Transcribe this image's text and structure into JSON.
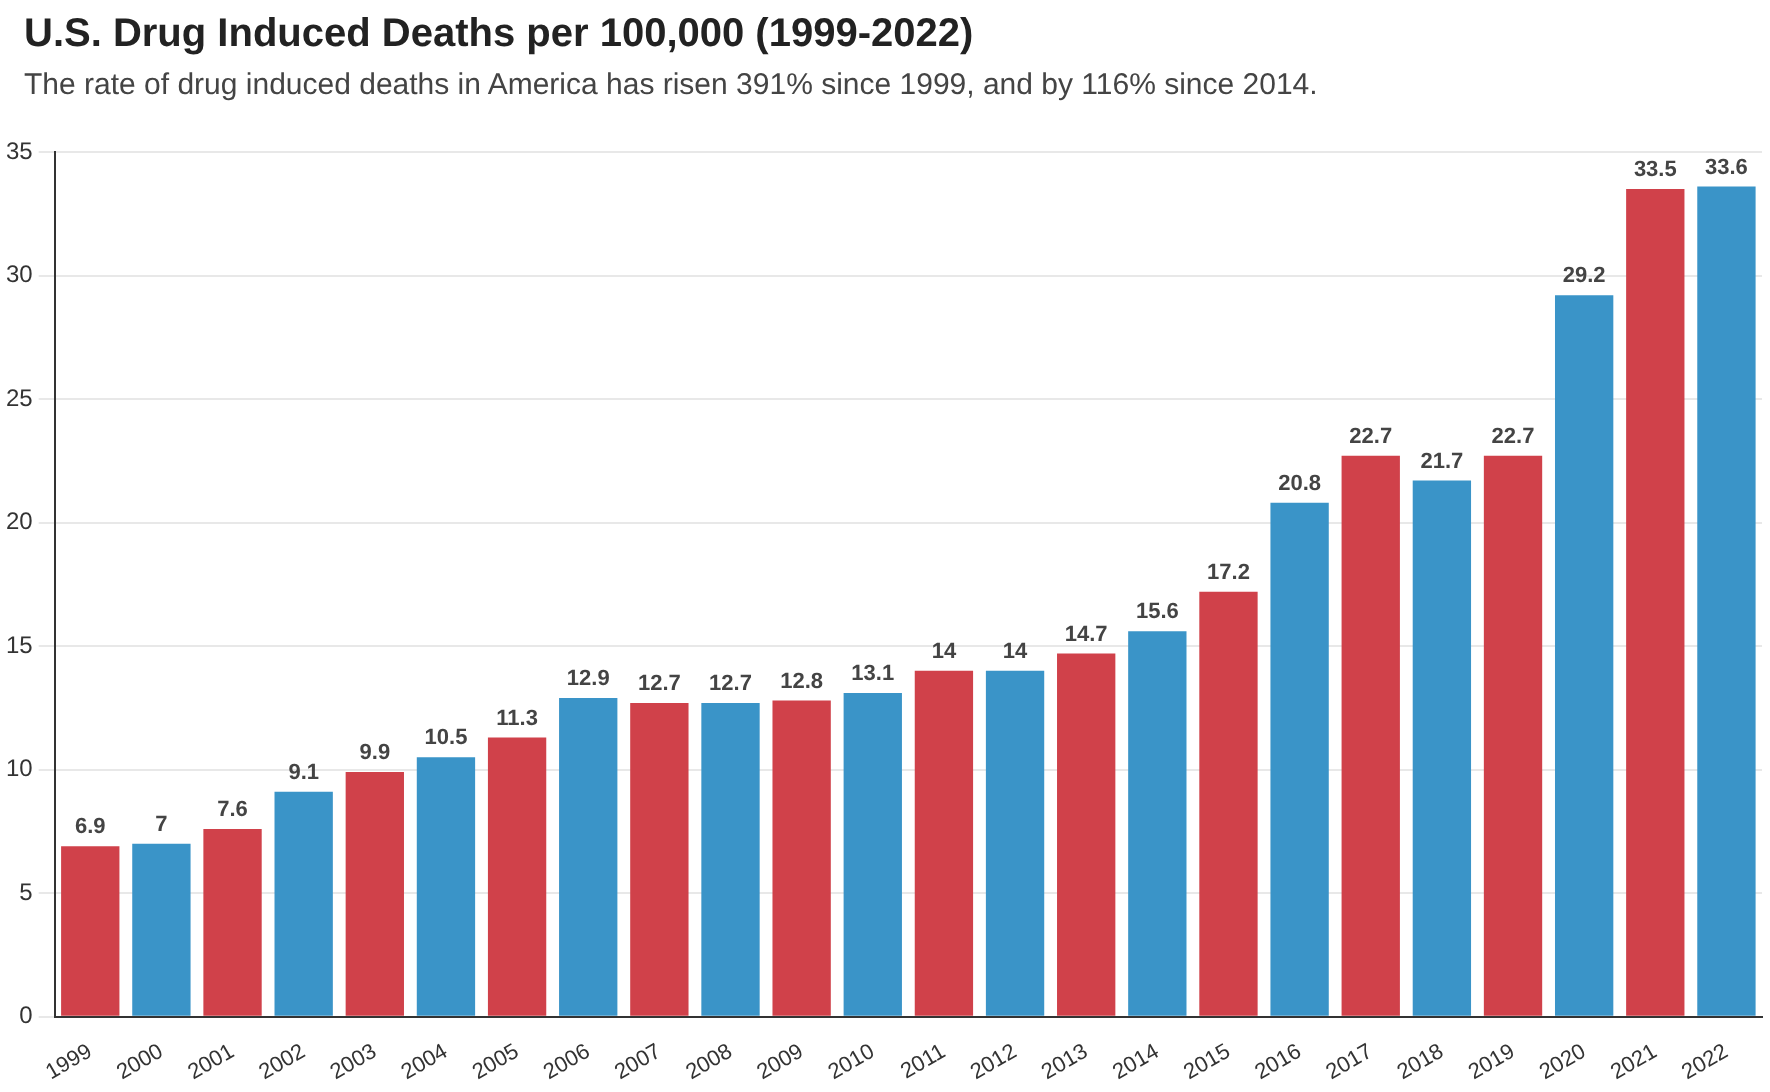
{
  "chart_data": {
    "type": "bar",
    "title": "U.S. Drug Induced Deaths per 100,000 (1999-2022)",
    "subtitle": "The rate of drug induced deaths in America has risen 391% since 1999, and by 116% since 2014.",
    "categories": [
      "1999",
      "2000",
      "2001",
      "2002",
      "2003",
      "2004",
      "2005",
      "2006",
      "2007",
      "2008",
      "2009",
      "2010",
      "2011",
      "2012",
      "2013",
      "2014",
      "2015",
      "2016",
      "2017",
      "2018",
      "2019",
      "2020",
      "2021",
      "2022"
    ],
    "values": [
      6.9,
      7,
      7.6,
      9.1,
      9.9,
      10.5,
      11.3,
      12.9,
      12.7,
      12.7,
      12.8,
      13.1,
      14,
      14,
      14.7,
      15.6,
      17.2,
      20.8,
      22.7,
      21.7,
      22.7,
      29.2,
      33.5,
      33.6
    ],
    "colors": [
      "#d0414a",
      "#3a94c8",
      "#d0414a",
      "#3a94c8",
      "#d0414a",
      "#3a94c8",
      "#d0414a",
      "#3a94c8",
      "#d0414a",
      "#3a94c8",
      "#d0414a",
      "#3a94c8",
      "#d0414a",
      "#3a94c8",
      "#d0414a",
      "#3a94c8",
      "#d0414a",
      "#3a94c8",
      "#d0414a",
      "#3a94c8",
      "#d0414a",
      "#3a94c8",
      "#d0414a",
      "#3a94c8"
    ],
    "ylim": [
      0,
      35
    ],
    "yticks": [
      0,
      5,
      10,
      15,
      20,
      25,
      30,
      35
    ],
    "grid": "y",
    "data_labels": true,
    "legend": false
  }
}
